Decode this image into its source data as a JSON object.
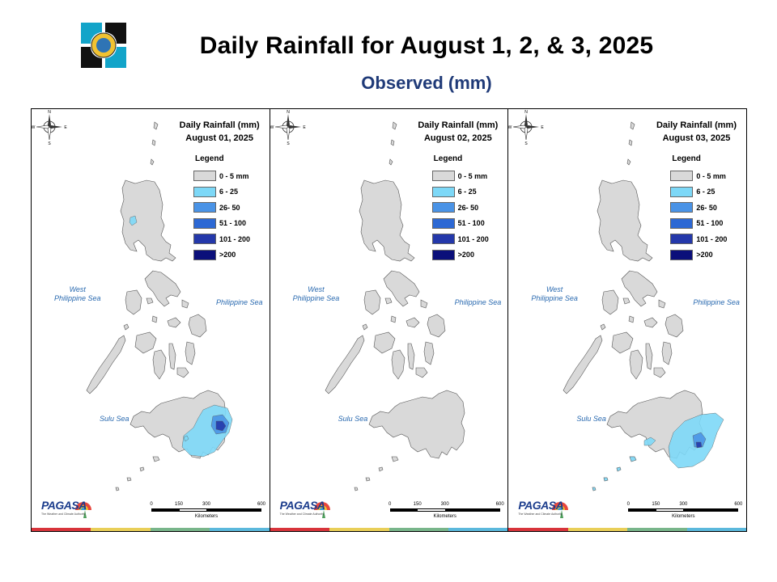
{
  "header": {
    "title": "Daily Rainfall for August 1, 2, & 3, 2025",
    "subtitle": "Observed (mm)"
  },
  "legend": {
    "title": "Legend",
    "items": [
      {
        "label": "0 - 5 mm",
        "color": "#d9d9d9"
      },
      {
        "label": "6 - 25",
        "color": "#7dd8f7"
      },
      {
        "label": "26- 50",
        "color": "#4a93e6"
      },
      {
        "label": "51 - 100",
        "color": "#2c68d4"
      },
      {
        "label": "101 - 200",
        "color": "#2438aa"
      },
      {
        "label": ">200",
        "color": "#0b0f7a"
      }
    ]
  },
  "panels": [
    {
      "title": "Daily Rainfall (mm)",
      "date": "August 01, 2025",
      "rain_level": "heavy"
    },
    {
      "title": "Daily Rainfall (mm)",
      "date": "August 02, 2025",
      "rain_level": "none"
    },
    {
      "title": "Daily Rainfall (mm)",
      "date": "August 03, 2025",
      "rain_level": "moderate"
    }
  ],
  "seas": {
    "west": "West\nPhilippine Sea",
    "east": "Philippine Sea",
    "sulu": "Sulu Sea"
  },
  "scale": {
    "ticks": [
      "0",
      "150",
      "300",
      "600"
    ],
    "unit": "Kilometers"
  },
  "compass": {
    "n": "N",
    "s": "S",
    "e": "E",
    "w": "W"
  },
  "branding": {
    "name": "PAGASA",
    "tagline": "The Weather and Climate Authority"
  },
  "colors": {
    "land": "#d9d9d9",
    "border": "#555555",
    "title_accent": "#1f3a78",
    "strip": [
      "#d8343b",
      "#e9cf58",
      "#78b58a",
      "#5bb8dc"
    ]
  }
}
